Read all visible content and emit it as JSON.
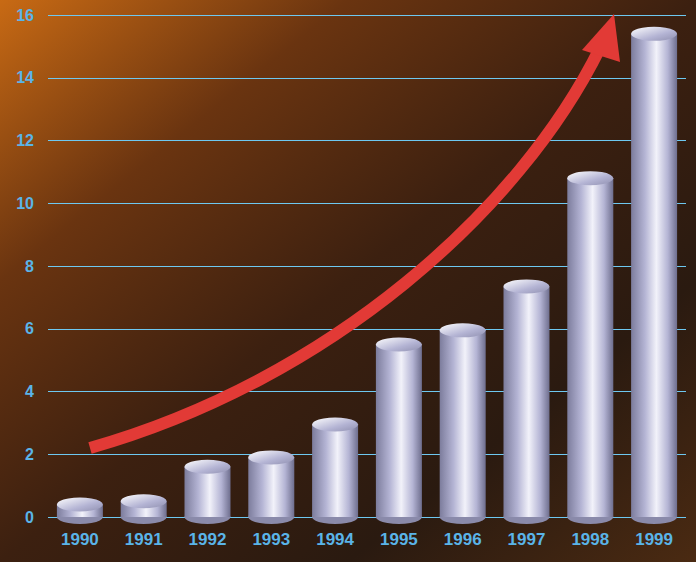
{
  "chart_data": {
    "type": "bar",
    "categories": [
      "1990",
      "1991",
      "1992",
      "1993",
      "1994",
      "1995",
      "1996",
      "1997",
      "1998",
      "1999"
    ],
    "values": [
      0.4,
      0.5,
      1.6,
      1.9,
      2.95,
      5.5,
      5.95,
      7.35,
      10.8,
      15.4
    ],
    "color": "#b4b4d4",
    "ylim": [
      0,
      16
    ],
    "yticks": [
      0,
      2,
      4,
      6,
      8,
      10,
      12,
      14,
      16
    ],
    "grid": true
  }
}
